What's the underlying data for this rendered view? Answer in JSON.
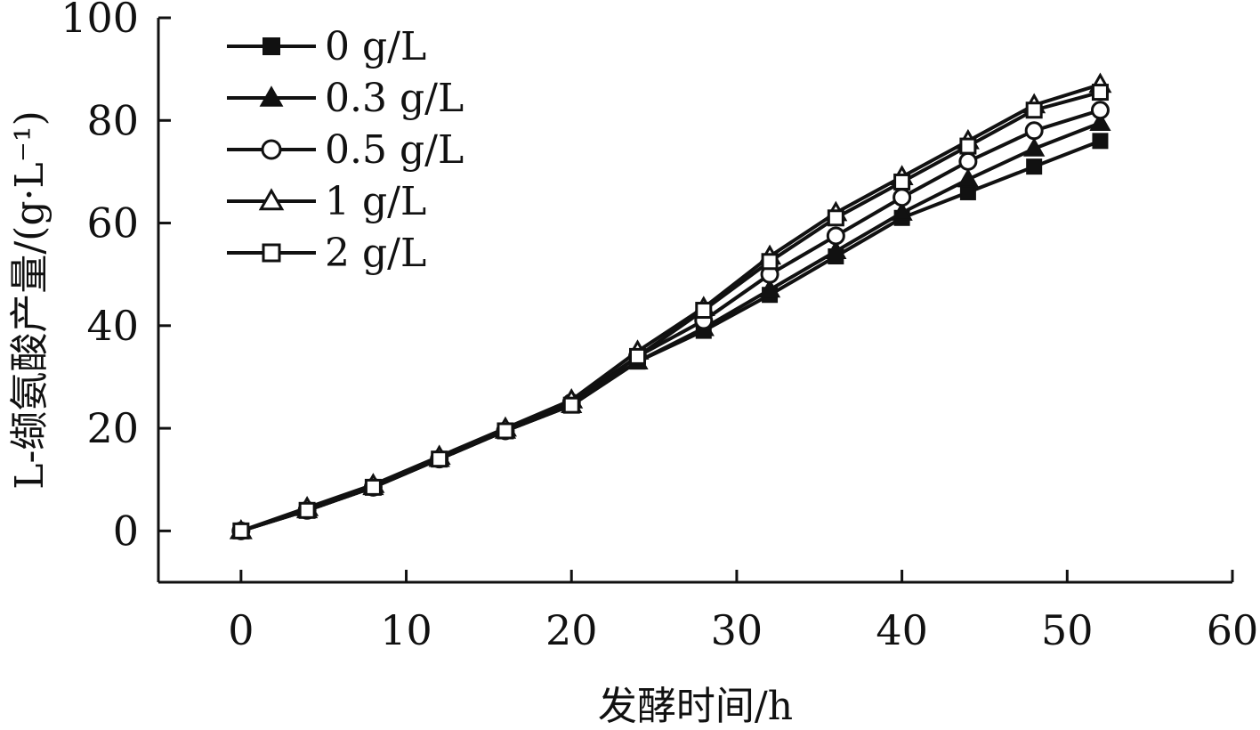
{
  "chart_data": {
    "type": "line",
    "xlabel": "发酵时间/h",
    "ylabel": "L-缬氨酸产量/(g·L⁻¹)",
    "xlim": [
      -5,
      60
    ],
    "ylim": [
      -10,
      100
    ],
    "xticks": [
      "0",
      "10",
      "20",
      "30",
      "40",
      "50",
      "60"
    ],
    "yticks": [
      "0",
      "20",
      "40",
      "60",
      "80",
      "100"
    ],
    "x": [
      0,
      4,
      8,
      12,
      16,
      20,
      24,
      28,
      32,
      36,
      40,
      44,
      48,
      52
    ],
    "legend_position": "top-left",
    "grid": false,
    "series": [
      {
        "name": "0 g/L",
        "marker": "filled-square",
        "values": [
          0,
          4,
          8.5,
          14,
          19.5,
          24.5,
          33,
          39,
          46,
          53.5,
          61,
          66,
          71,
          76
        ]
      },
      {
        "name": "0.3 g/L",
        "marker": "filled-triangle",
        "values": [
          0,
          4,
          8.5,
          14,
          19.5,
          24.5,
          33,
          39.5,
          47,
          54.5,
          62,
          68.5,
          74.5,
          79.5
        ]
      },
      {
        "name": "0.5 g/L",
        "marker": "open-circle",
        "values": [
          0,
          4,
          8.5,
          14,
          19.5,
          25,
          34,
          41,
          50,
          57.5,
          65,
          72,
          78,
          82
        ]
      },
      {
        "name": "1 g/L",
        "marker": "open-triangle",
        "values": [
          0,
          4.5,
          9,
          14.5,
          20,
          25.5,
          35,
          43.5,
          53.5,
          62,
          69,
          76,
          83,
          87
        ]
      },
      {
        "name": "2 g/L",
        "marker": "open-square",
        "values": [
          0,
          4,
          8.5,
          14,
          19.5,
          24.5,
          34,
          43,
          52.5,
          61,
          68,
          75,
          82,
          85.5
        ]
      }
    ]
  }
}
